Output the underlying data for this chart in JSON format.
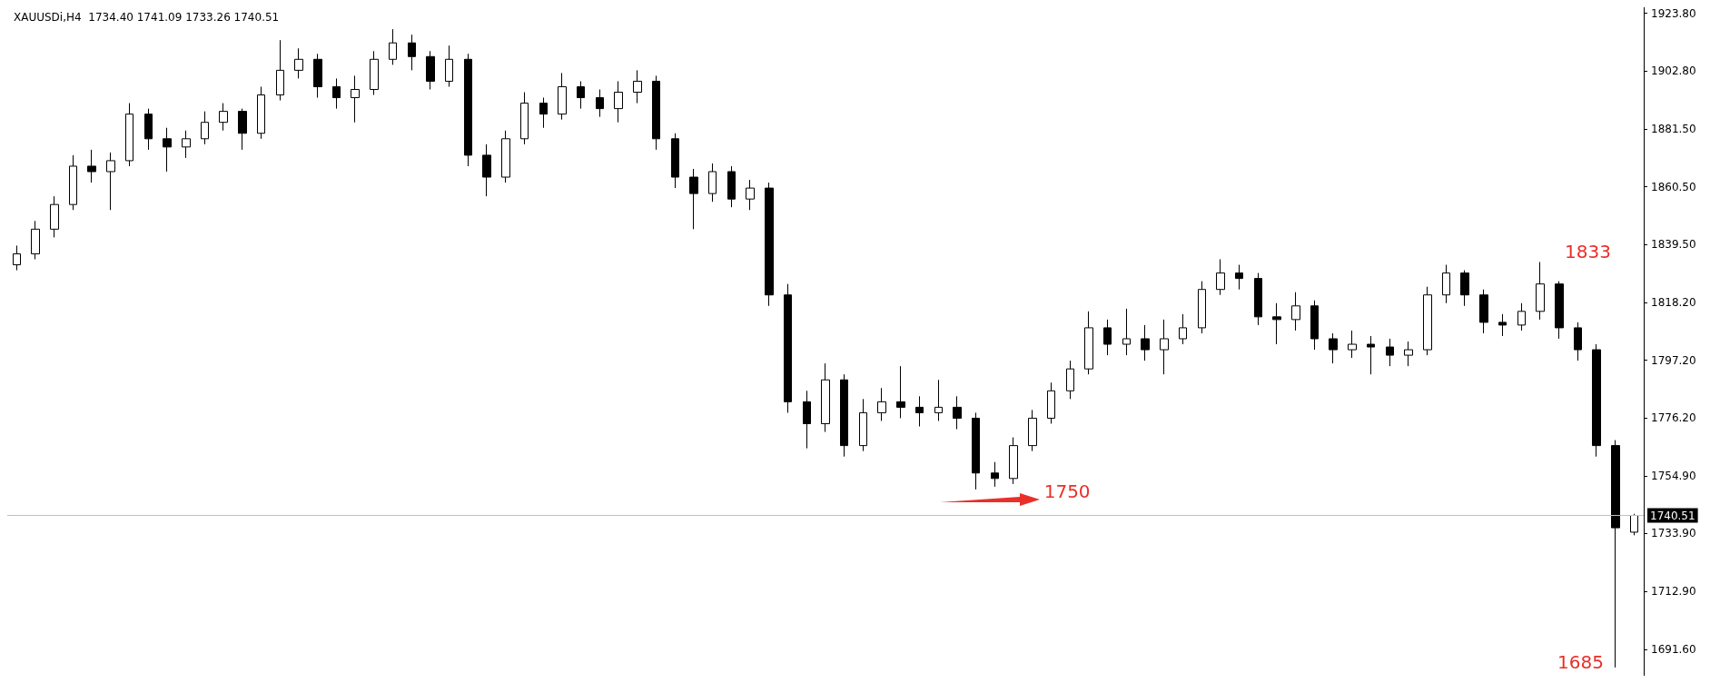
{
  "chart_data": {
    "type": "candlestick",
    "title": "XAUUSDi,H4  1734.40 1741.09 1733.26 1740.51",
    "categories": [
      null,
      null,
      null,
      null,
      null,
      null,
      null,
      null,
      null,
      null,
      null,
      null,
      null,
      null,
      null,
      null,
      null,
      null,
      null,
      null,
      null,
      null,
      null,
      null,
      null,
      null,
      null,
      null,
      null,
      null,
      null,
      null,
      null,
      null,
      null,
      null,
      null,
      null,
      null,
      null,
      null,
      null,
      null,
      null,
      null,
      null,
      null,
      null,
      null,
      null,
      null,
      null,
      null,
      null,
      null,
      null,
      null,
      null,
      null,
      null,
      null,
      null,
      null,
      null,
      null,
      null,
      null,
      null,
      null,
      null,
      null,
      null,
      null,
      null,
      null,
      null,
      null,
      null,
      null,
      null,
      null,
      null,
      null,
      null,
      null,
      null,
      null
    ],
    "series": [
      {
        "color": "#000000",
        "ohlc": [
          [
            1832,
            1839,
            1830,
            1836
          ],
          [
            1836,
            1848,
            1834,
            1845
          ],
          [
            1845,
            1857,
            1842,
            1854
          ],
          [
            1854,
            1872,
            1852,
            1868
          ],
          [
            1868,
            1874,
            1862,
            1866
          ],
          [
            1866,
            1873,
            1852,
            1870
          ],
          [
            1870,
            1891,
            1868,
            1887
          ],
          [
            1887,
            1889,
            1874,
            1878
          ],
          [
            1878,
            1882,
            1866,
            1875
          ],
          [
            1875,
            1881,
            1871,
            1878
          ],
          [
            1878,
            1888,
            1876,
            1884
          ],
          [
            1884,
            1891,
            1881,
            1888
          ],
          [
            1888,
            1889,
            1874,
            1880
          ],
          [
            1880,
            1897,
            1878,
            1894
          ],
          [
            1894,
            1914,
            1892,
            1903
          ],
          [
            1903,
            1911,
            1900,
            1907
          ],
          [
            1907,
            1909,
            1893,
            1897
          ],
          [
            1897,
            1900,
            1889,
            1893
          ],
          [
            1893,
            1901,
            1884,
            1896
          ],
          [
            1896,
            1910,
            1894,
            1907
          ],
          [
            1907,
            1918,
            1905,
            1913
          ],
          [
            1913,
            1916,
            1903,
            1908
          ],
          [
            1908,
            1910,
            1896,
            1899
          ],
          [
            1899,
            1912,
            1897,
            1907
          ],
          [
            1907,
            1909,
            1868,
            1872
          ],
          [
            1872,
            1876,
            1857,
            1864
          ],
          [
            1864,
            1881,
            1862,
            1878
          ],
          [
            1878,
            1895,
            1876,
            1891
          ],
          [
            1891,
            1893,
            1882,
            1887
          ],
          [
            1887,
            1902,
            1885,
            1897
          ],
          [
            1897,
            1899,
            1889,
            1893
          ],
          [
            1893,
            1896,
            1886,
            1889
          ],
          [
            1889,
            1899,
            1884,
            1895
          ],
          [
            1895,
            1903,
            1891,
            1899
          ],
          [
            1899,
            1901,
            1874,
            1878
          ],
          [
            1878,
            1880,
            1860,
            1864
          ],
          [
            1864,
            1867,
            1845,
            1858
          ],
          [
            1858,
            1869,
            1855,
            1866
          ],
          [
            1866,
            1868,
            1853,
            1856
          ],
          [
            1856,
            1863,
            1852,
            1860
          ],
          [
            1860,
            1862,
            1817,
            1821
          ],
          [
            1821,
            1825,
            1778,
            1782
          ],
          [
            1782,
            1786,
            1765,
            1774
          ],
          [
            1774,
            1796,
            1771,
            1790
          ],
          [
            1790,
            1792,
            1762,
            1766
          ],
          [
            1766,
            1783,
            1764,
            1778
          ],
          [
            1778,
            1787,
            1775,
            1782
          ],
          [
            1782,
            1795,
            1776,
            1780
          ],
          [
            1780,
            1784,
            1773,
            1778
          ],
          [
            1778,
            1790,
            1775,
            1780
          ],
          [
            1780,
            1784,
            1772,
            1776
          ],
          [
            1776,
            1778,
            1750,
            1756
          ],
          [
            1756,
            1760,
            1751,
            1754
          ],
          [
            1754,
            1769,
            1752,
            1766
          ],
          [
            1766,
            1779,
            1764,
            1776
          ],
          [
            1776,
            1789,
            1774,
            1786
          ],
          [
            1786,
            1797,
            1783,
            1794
          ],
          [
            1794,
            1815,
            1792,
            1809
          ],
          [
            1809,
            1812,
            1799,
            1803
          ],
          [
            1803,
            1816,
            1799,
            1805
          ],
          [
            1805,
            1810,
            1797,
            1801
          ],
          [
            1801,
            1812,
            1792,
            1805
          ],
          [
            1805,
            1814,
            1803,
            1809
          ],
          [
            1809,
            1826,
            1807,
            1823
          ],
          [
            1823,
            1834,
            1821,
            1829
          ],
          [
            1829,
            1832,
            1823,
            1827
          ],
          [
            1827,
            1829,
            1810,
            1813
          ],
          [
            1813,
            1818,
            1803,
            1812
          ],
          [
            1812,
            1822,
            1808,
            1817
          ],
          [
            1817,
            1819,
            1801,
            1805
          ],
          [
            1805,
            1807,
            1796,
            1801
          ],
          [
            1801,
            1808,
            1798,
            1803
          ],
          [
            1803,
            1806,
            1792,
            1802
          ],
          [
            1802,
            1805,
            1795,
            1799
          ],
          [
            1799,
            1804,
            1795,
            1801
          ],
          [
            1801,
            1824,
            1799,
            1821
          ],
          [
            1821,
            1832,
            1818,
            1829
          ],
          [
            1829,
            1830,
            1817,
            1821
          ],
          [
            1821,
            1823,
            1807,
            1811
          ],
          [
            1811,
            1814,
            1806,
            1810
          ],
          [
            1810,
            1818,
            1808,
            1815
          ],
          [
            1815,
            1833,
            1812,
            1825
          ],
          [
            1825,
            1826,
            1805,
            1809
          ],
          [
            1809,
            1811,
            1797,
            1801
          ],
          [
            1801,
            1803,
            1762,
            1766
          ],
          [
            1766,
            1768,
            1685,
            1736
          ],
          [
            1734.4,
            1741.09,
            1733.26,
            1740.51
          ]
        ]
      }
    ],
    "ylim": [
      1682,
      1926
    ],
    "yticks": [
      {
        "value": 1923.8,
        "label": "1923.80"
      },
      {
        "value": 1902.8,
        "label": "1902.80"
      },
      {
        "value": 1881.5,
        "label": "1881.50"
      },
      {
        "value": 1860.5,
        "label": "1860.50"
      },
      {
        "value": 1839.5,
        "label": "1839.50"
      },
      {
        "value": 1818.2,
        "label": "1818.20"
      },
      {
        "value": 1797.2,
        "label": "1797.20"
      },
      {
        "value": 1776.2,
        "label": "1776.20"
      },
      {
        "value": 1754.9,
        "label": "1754.90"
      },
      {
        "value": 1733.9,
        "label": "1733.90"
      },
      {
        "value": 1712.9,
        "label": "1712.90"
      },
      {
        "value": 1691.6,
        "label": "1691.60"
      }
    ],
    "tick_labels": "y",
    "ref_lines": [
      {
        "axis": "y",
        "value": 1740.51,
        "label": "1740.51",
        "color": "#c0c0c0"
      }
    ],
    "annotations": [
      "1833",
      "1750",
      "1685"
    ]
  }
}
